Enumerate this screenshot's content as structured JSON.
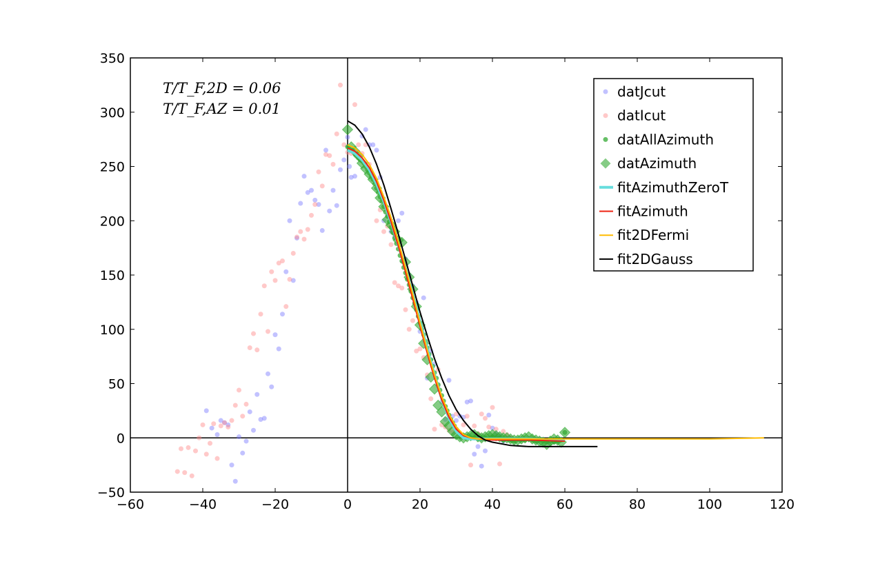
{
  "chart_data": {
    "type": "scatter",
    "xlim": [
      -60,
      120
    ],
    "ylim": [
      -50,
      350
    ],
    "xticks": [
      -60,
      -40,
      -20,
      0,
      20,
      40,
      60,
      80,
      100,
      120
    ],
    "yticks": [
      -50,
      0,
      50,
      100,
      150,
      200,
      250,
      300,
      350
    ],
    "xtick_labels": [
      "−60",
      "−40",
      "−20",
      "0",
      "20",
      "40",
      "60",
      "80",
      "100",
      "120"
    ],
    "ytick_labels": [
      "−50",
      "0",
      "50",
      "100",
      "150",
      "200",
      "250",
      "300",
      "350"
    ],
    "grid": false,
    "reference_lines": {
      "x": 0,
      "y": 0
    },
    "legend_position": "upper-right",
    "annotations": [
      "T/T_F,2D = 0.06",
      "T/T_F,AZ = 0.01"
    ],
    "series": [
      {
        "name": "datJcut",
        "kind": "scatter",
        "marker": "circle",
        "color": "#7777ff",
        "x": [
          -39,
          -37.5,
          -36,
          -35,
          -34,
          -33,
          -32,
          -31,
          -30,
          -29,
          -28,
          -27,
          -26,
          -25,
          -24,
          -23,
          -22,
          -21,
          -20,
          -19,
          -18,
          -17,
          -16,
          -15,
          -14,
          -13,
          -12,
          -11,
          -10,
          -9,
          -8,
          -7,
          -6,
          -5,
          -4,
          -3,
          -2,
          -1,
          0,
          0.5,
          1,
          2,
          3,
          4,
          5,
          6,
          7,
          8,
          9,
          10,
          11,
          12,
          13,
          14,
          15,
          16,
          17,
          18,
          19,
          20,
          21,
          22,
          23,
          24,
          25,
          26,
          27,
          28,
          29,
          30,
          31,
          32,
          33,
          34,
          35,
          36,
          37,
          38,
          39,
          40,
          41,
          42,
          43,
          44,
          45
        ],
        "y": [
          25,
          9,
          3,
          16,
          14,
          12,
          -25,
          -40,
          1,
          -14,
          -3,
          24,
          7,
          40,
          17,
          18,
          59,
          47,
          95,
          82,
          114,
          153,
          200,
          145,
          184,
          216,
          241,
          226,
          228,
          219,
          215,
          191,
          265,
          209,
          228,
          214,
          247,
          256,
          277,
          250,
          240,
          241,
          258,
          278,
          284,
          270,
          270,
          265,
          240,
          200,
          205,
          190,
          185,
          200,
          207,
          165,
          150,
          140,
          125,
          98,
          129,
          55,
          80,
          68,
          48,
          33,
          17,
          53,
          20,
          16,
          20,
          19,
          33,
          34,
          -15,
          -8,
          -26,
          -12,
          21,
          9,
          4,
          2,
          -3,
          -1,
          0
        ]
      },
      {
        "name": "datIcut",
        "kind": "scatter",
        "marker": "circle",
        "color": "#ff8888",
        "x": [
          -47,
          -46,
          -45,
          -44,
          -43,
          -42,
          -41,
          -40,
          -39,
          -38,
          -37,
          -36,
          -35,
          -34,
          -33,
          -32,
          -31,
          -30,
          -29,
          -28,
          -27,
          -26,
          -25,
          -24,
          -23,
          -22,
          -21,
          -20,
          -19,
          -18,
          -17,
          -16,
          -15,
          -14,
          -13,
          -12,
          -11,
          -10,
          -9,
          -8,
          -7,
          -6,
          -5,
          -4,
          -3,
          -2,
          -1,
          0,
          1,
          2,
          3,
          4,
          5,
          6,
          7,
          8,
          9,
          10,
          11,
          12,
          13,
          14,
          15,
          16,
          17,
          18,
          19,
          20,
          21,
          22,
          23,
          24,
          25,
          26,
          27,
          28,
          29,
          30,
          31,
          32,
          33,
          34,
          35,
          36,
          37,
          38,
          39,
          40,
          41,
          42,
          43,
          44,
          45
        ],
        "y": [
          -31,
          -10,
          -32,
          -9,
          -35,
          -12,
          0,
          12,
          -15,
          -5,
          13,
          -19,
          11,
          14,
          10,
          16,
          30,
          44,
          20,
          31,
          83,
          96,
          81,
          114,
          140,
          98,
          153,
          145,
          161,
          163,
          121,
          146,
          170,
          185,
          190,
          183,
          192,
          205,
          215,
          245,
          232,
          261,
          260,
          252,
          280,
          325,
          270,
          263,
          262,
          307,
          270,
          262,
          270,
          252,
          240,
          200,
          210,
          190,
          195,
          178,
          143,
          140,
          138,
          118,
          100,
          108,
          80,
          82,
          74,
          58,
          36,
          8,
          63,
          12,
          10,
          7,
          5,
          22,
          3,
          12,
          20,
          -25,
          11,
          4,
          22,
          18,
          10,
          28,
          8,
          -24,
          6,
          3,
          0
        ]
      },
      {
        "name": "datAllAzimuth",
        "kind": "scatter",
        "marker": "circle",
        "color": "#33aa33",
        "x": [
          0,
          0.5,
          1,
          1.5,
          2,
          2.5,
          3,
          3.5,
          4,
          4.5,
          5,
          5.5,
          6,
          6.5,
          7,
          7.5,
          8,
          8.5,
          9,
          9.5,
          10,
          10.5,
          11,
          11.5,
          12,
          12.5,
          13,
          13.5,
          14,
          14.5,
          15,
          15.5,
          16,
          16.5,
          17,
          17.5,
          18,
          18.5,
          19,
          19.5,
          20,
          20.5,
          21,
          21.5,
          22,
          22.5,
          23,
          23.5,
          24,
          24.5,
          25,
          25.5,
          26,
          26.5,
          27,
          27.5,
          28,
          28.5,
          29,
          29.5,
          30,
          31,
          32,
          33,
          34,
          35,
          36,
          37,
          38,
          39,
          40,
          41,
          42,
          43,
          44,
          45,
          46,
          47,
          48,
          49,
          50,
          51,
          52,
          53,
          54,
          55,
          56,
          57,
          58,
          59,
          60
        ],
        "y": [
          268,
          266,
          265,
          264,
          262,
          260,
          258,
          256,
          255,
          253,
          250,
          247,
          244,
          241,
          238,
          234,
          230,
          226,
          222,
          218,
          213,
          208,
          204,
          199,
          194,
          189,
          184,
          179,
          174,
          168,
          163,
          157,
          152,
          146,
          141,
          135,
          129,
          124,
          118,
          112,
          106,
          100,
          95,
          89,
          83,
          77,
          72,
          66,
          60,
          55,
          49,
          44,
          39,
          34,
          29,
          25,
          21,
          17,
          14,
          11,
          8,
          4,
          2,
          1,
          0,
          0,
          -1,
          -1,
          0,
          -1,
          1,
          0,
          0,
          -2,
          -1,
          -2,
          -3,
          -1,
          -2,
          -2,
          -1,
          -2,
          -3,
          -2,
          -3,
          -4,
          -3,
          -4,
          -3,
          -2,
          5
        ]
      },
      {
        "name": "datAzimuth",
        "kind": "scatter",
        "marker": "diamond",
        "color": "#33aa33",
        "x": [
          0,
          1,
          2,
          3,
          4,
          5,
          6,
          7,
          8,
          9,
          10,
          11,
          12,
          13,
          14,
          15,
          16,
          17,
          18,
          19,
          20,
          21,
          22,
          23,
          24,
          25,
          26,
          27,
          28,
          29,
          30,
          31,
          32,
          33,
          34,
          35,
          36,
          37,
          38,
          39,
          40,
          41,
          42,
          43,
          44,
          45,
          46,
          47,
          48,
          49,
          50,
          51,
          52,
          53,
          54,
          55,
          56,
          57,
          58,
          59,
          60
        ],
        "y": [
          284,
          268,
          264,
          260,
          253,
          248,
          243,
          238,
          230,
          221,
          213,
          201,
          196,
          190,
          182,
          180,
          162,
          148,
          137,
          121,
          104,
          87,
          72,
          56,
          45,
          30,
          24,
          15,
          11,
          6,
          3,
          1,
          0,
          1,
          2,
          3,
          1,
          0,
          1,
          2,
          3,
          2,
          1,
          0,
          0,
          -1,
          -2,
          -2,
          -1,
          0,
          1,
          -1,
          -2,
          -3,
          -4,
          -6,
          -3,
          -1,
          -2,
          -4,
          5
        ]
      },
      {
        "name": "fitAzimuthZeroT",
        "kind": "line",
        "color": "#66dddd",
        "width": 4,
        "x": [
          0,
          2,
          4,
          6,
          8,
          10,
          12,
          14,
          16,
          18,
          20,
          22,
          24,
          26,
          28,
          30,
          32,
          34,
          36,
          40,
          50,
          60
        ],
        "y": [
          265,
          262,
          256,
          247,
          234,
          218,
          199,
          178,
          156,
          132,
          107,
          82,
          58,
          36,
          18,
          6,
          0,
          -1,
          -1,
          -1,
          -1,
          -2
        ]
      },
      {
        "name": "fitAzimuth",
        "kind": "line",
        "color": "#ee2211",
        "width": 2,
        "x": [
          0,
          2,
          4,
          6,
          8,
          10,
          12,
          14,
          16,
          18,
          20,
          22,
          24,
          26,
          28,
          30,
          32,
          34,
          36,
          40,
          50,
          60
        ],
        "y": [
          267,
          264,
          258,
          249,
          236,
          219,
          199,
          177,
          153,
          128,
          103,
          78,
          55,
          35,
          19,
          8,
          2,
          0,
          -1,
          -2,
          -2,
          -3
        ]
      },
      {
        "name": "fit2DFermi",
        "kind": "line",
        "color": "#ffbb00",
        "width": 2,
        "x": [
          0,
          2,
          4,
          6,
          8,
          10,
          12,
          14,
          16,
          18,
          20,
          22,
          24,
          26,
          28,
          30,
          32,
          34,
          36,
          40,
          50,
          60,
          80,
          100,
          115
        ],
        "y": [
          270,
          267,
          261,
          252,
          239,
          222,
          203,
          181,
          157,
          132,
          106,
          81,
          58,
          38,
          22,
          10,
          3,
          0,
          -1,
          -1,
          -1,
          -1,
          -1,
          -1,
          0
        ]
      },
      {
        "name": "fit2DGauss",
        "kind": "line",
        "color": "#000000",
        "width": 2,
        "x": [
          0,
          2,
          4,
          6,
          8,
          10,
          12,
          14,
          16,
          18,
          20,
          22,
          24,
          26,
          28,
          30,
          32,
          34,
          36,
          38,
          40,
          45,
          50,
          55,
          60,
          69
        ],
        "y": [
          292,
          288,
          280,
          268,
          252,
          233,
          211,
          188,
          164,
          140,
          116,
          94,
          73,
          55,
          39,
          26,
          16,
          8,
          2,
          -2,
          -4,
          -7,
          -8,
          -8,
          -8,
          -8
        ]
      }
    ]
  }
}
